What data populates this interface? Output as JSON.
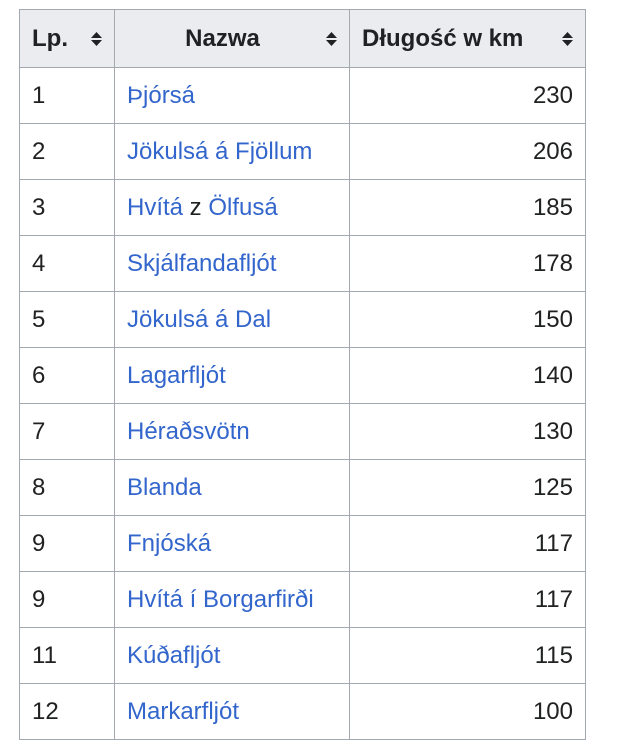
{
  "table": {
    "headers": {
      "lp": "Lp.",
      "name": "Nazwa",
      "length": "Długość w km"
    },
    "sort_icon": "sort-both-icon",
    "rows": [
      {
        "lp": "1",
        "name": "Þjórsá",
        "length": "230"
      },
      {
        "lp": "2",
        "name": "Jökulsá á Fjöllum",
        "length": "206"
      },
      {
        "lp": "3",
        "name_a": "Hvítá",
        "joiner": " z ",
        "name_b": "Ölfusá",
        "length": "185"
      },
      {
        "lp": "4",
        "name": "Skjálfandafljót",
        "length": "178"
      },
      {
        "lp": "5",
        "name": "Jökulsá á Dal",
        "length": "150"
      },
      {
        "lp": "6",
        "name": "Lagarfljót",
        "length": "140"
      },
      {
        "lp": "7",
        "name": "Héraðsvötn",
        "length": "130"
      },
      {
        "lp": "8",
        "name": "Blanda",
        "length": "125"
      },
      {
        "lp": "9",
        "name": "Fnjóská",
        "length": "117"
      },
      {
        "lp": "9",
        "name": "Hvítá í Borgarfirði",
        "length": "117"
      },
      {
        "lp": "11",
        "name": "Kúðafljót",
        "length": "115"
      },
      {
        "lp": "12",
        "name": "Markarfljót",
        "length": "100"
      }
    ]
  },
  "colors": {
    "link": "#3366cc",
    "header_bg": "#eaecf0",
    "border": "#a2a9b1",
    "text": "#202122"
  }
}
